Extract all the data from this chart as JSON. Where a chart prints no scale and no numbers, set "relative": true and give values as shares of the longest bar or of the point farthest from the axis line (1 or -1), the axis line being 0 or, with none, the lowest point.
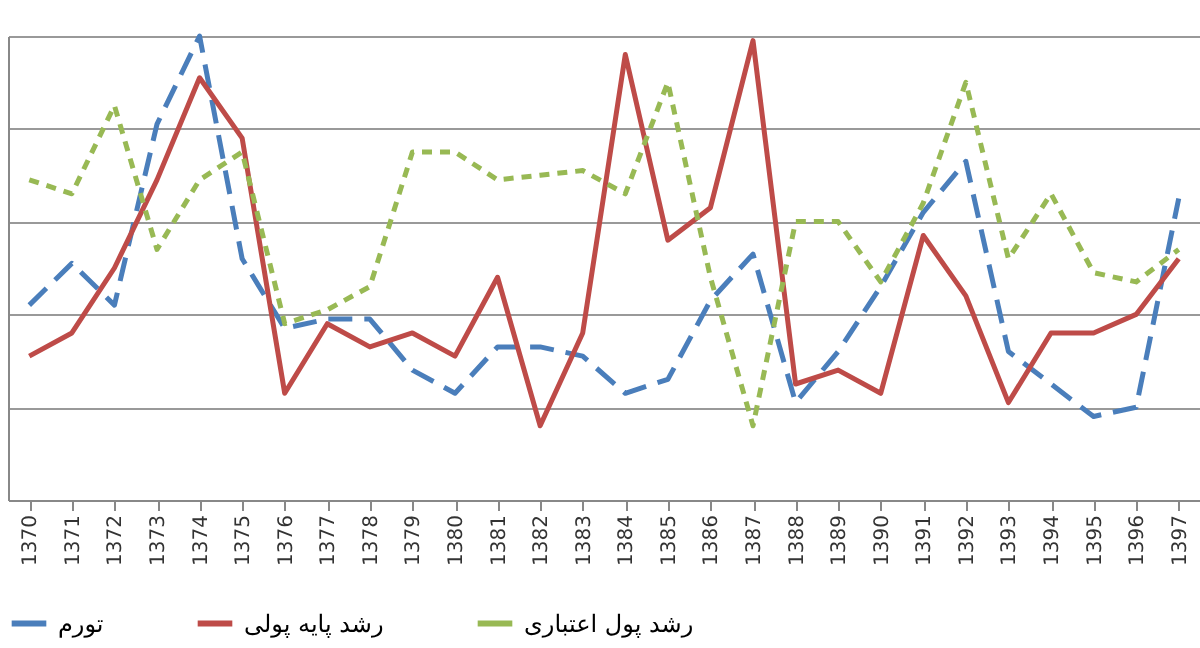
{
  "chart_data": {
    "type": "line",
    "relative": true,
    "grid": "y",
    "legend": "bottom",
    "categories": [
      "1370",
      "1371",
      "1372",
      "1373",
      "1374",
      "1375",
      "1376",
      "1377",
      "1378",
      "1379",
      "1380",
      "1381",
      "1382",
      "1383",
      "1384",
      "1385",
      "1386",
      "1387",
      "1388",
      "1389",
      "1390",
      "1391",
      "1392",
      "1393",
      "1394",
      "1395",
      "1396",
      "1397"
    ],
    "series": [
      {
        "name": "تورم",
        "color": "#4a7ebb",
        "line_style": "dashed",
        "values": [
          0.42,
          0.51,
          0.42,
          0.81,
          1,
          0.52,
          0.37,
          0.39,
          0.39,
          0.28,
          0.23,
          0.33,
          0.33,
          0.31,
          0.23,
          0.26,
          0.43,
          0.53,
          0.21,
          0.32,
          0.46,
          0.62,
          0.73,
          0.32,
          0.25,
          0.18,
          0.2,
          0.65
        ]
      },
      {
        "name": "رشد پایه پولی",
        "color": "#be4b48",
        "line_style": "solid",
        "values": [
          0.31,
          0.36,
          0.5,
          0.69,
          0.91,
          0.78,
          0.23,
          0.38,
          0.33,
          0.36,
          0.31,
          0.48,
          0.16,
          0.36,
          0.96,
          0.56,
          0.63,
          0.99,
          0.25,
          0.28,
          0.23,
          0.57,
          0.44,
          0.21,
          0.36,
          0.36,
          0.4,
          0.52
        ]
      },
      {
        "name": "رشد پول اعتباری",
        "color": "#98b954",
        "line_style": "dotted",
        "values": [
          0.69,
          0.66,
          0.85,
          0.54,
          0.69,
          0.75,
          0.38,
          0.41,
          0.46,
          0.75,
          0.75,
          0.69,
          0.7,
          0.71,
          0.66,
          0.9,
          0.48,
          0.16,
          0.6,
          0.6,
          0.47,
          0.64,
          0.9,
          0.52,
          0.66,
          0.49,
          0.47,
          0.54
        ]
      }
    ]
  }
}
